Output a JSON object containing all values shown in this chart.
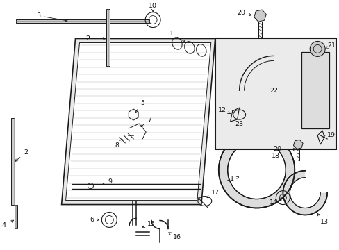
{
  "bg_color": "#ffffff",
  "line_color": "#1a1a1a",
  "text_color": "#111111",
  "figsize": [
    4.89,
    3.6
  ],
  "dpi": 100,
  "fill_color": "#e8e8e8",
  "box_fill": "#e0e0e0"
}
